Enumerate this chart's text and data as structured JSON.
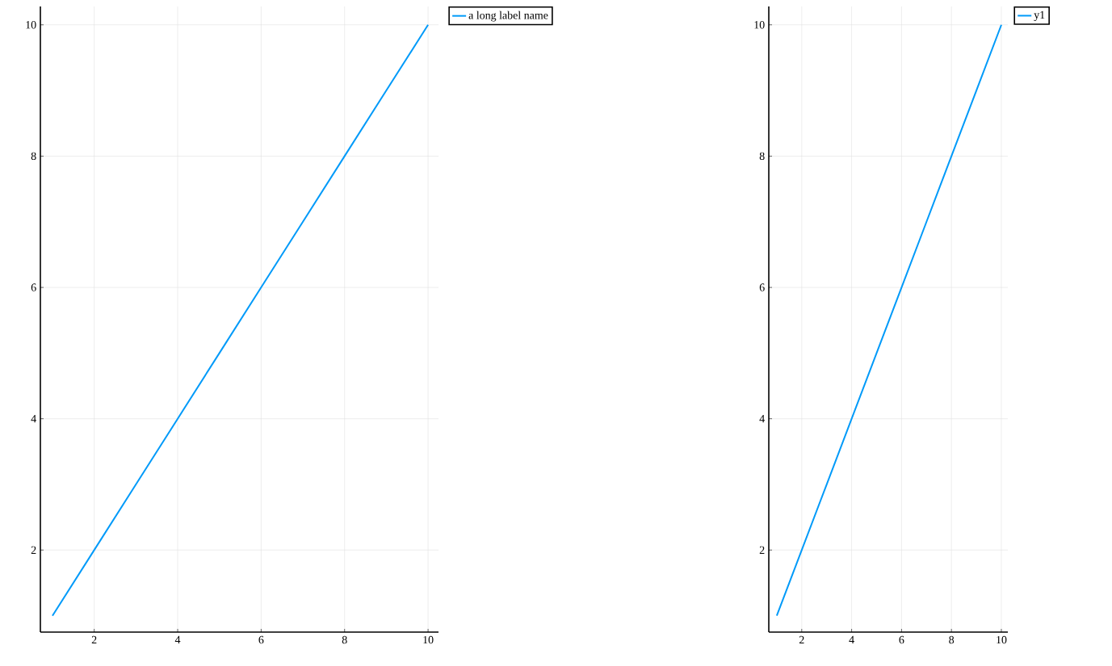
{
  "chart_data": [
    {
      "type": "line",
      "x": [
        1,
        2,
        3,
        4,
        5,
        6,
        7,
        8,
        9,
        10
      ],
      "series": [
        {
          "name": "a long label name",
          "color": "#009af9",
          "values": [
            1,
            2,
            3,
            4,
            5,
            6,
            7,
            8,
            9,
            10
          ]
        }
      ],
      "xlim": [
        0.71,
        10.25
      ],
      "ylim": [
        0.75,
        10.28
      ],
      "xticks": [
        2,
        4,
        6,
        8,
        10
      ],
      "yticks": [
        2,
        4,
        6,
        8,
        10
      ],
      "grid": true,
      "legend": "top right"
    },
    {
      "type": "line",
      "x": [
        1,
        2,
        3,
        4,
        5,
        6,
        7,
        8,
        9,
        10
      ],
      "series": [
        {
          "name": "y1",
          "color": "#009af9",
          "values": [
            1,
            2,
            3,
            4,
            5,
            6,
            7,
            8,
            9,
            10
          ]
        }
      ],
      "xlim": [
        0.68,
        10.26
      ],
      "ylim": [
        0.75,
        10.28
      ],
      "xticks": [
        2,
        4,
        6,
        8,
        10
      ],
      "yticks": [
        2,
        4,
        6,
        8,
        10
      ],
      "grid": true,
      "legend": "top right"
    }
  ]
}
